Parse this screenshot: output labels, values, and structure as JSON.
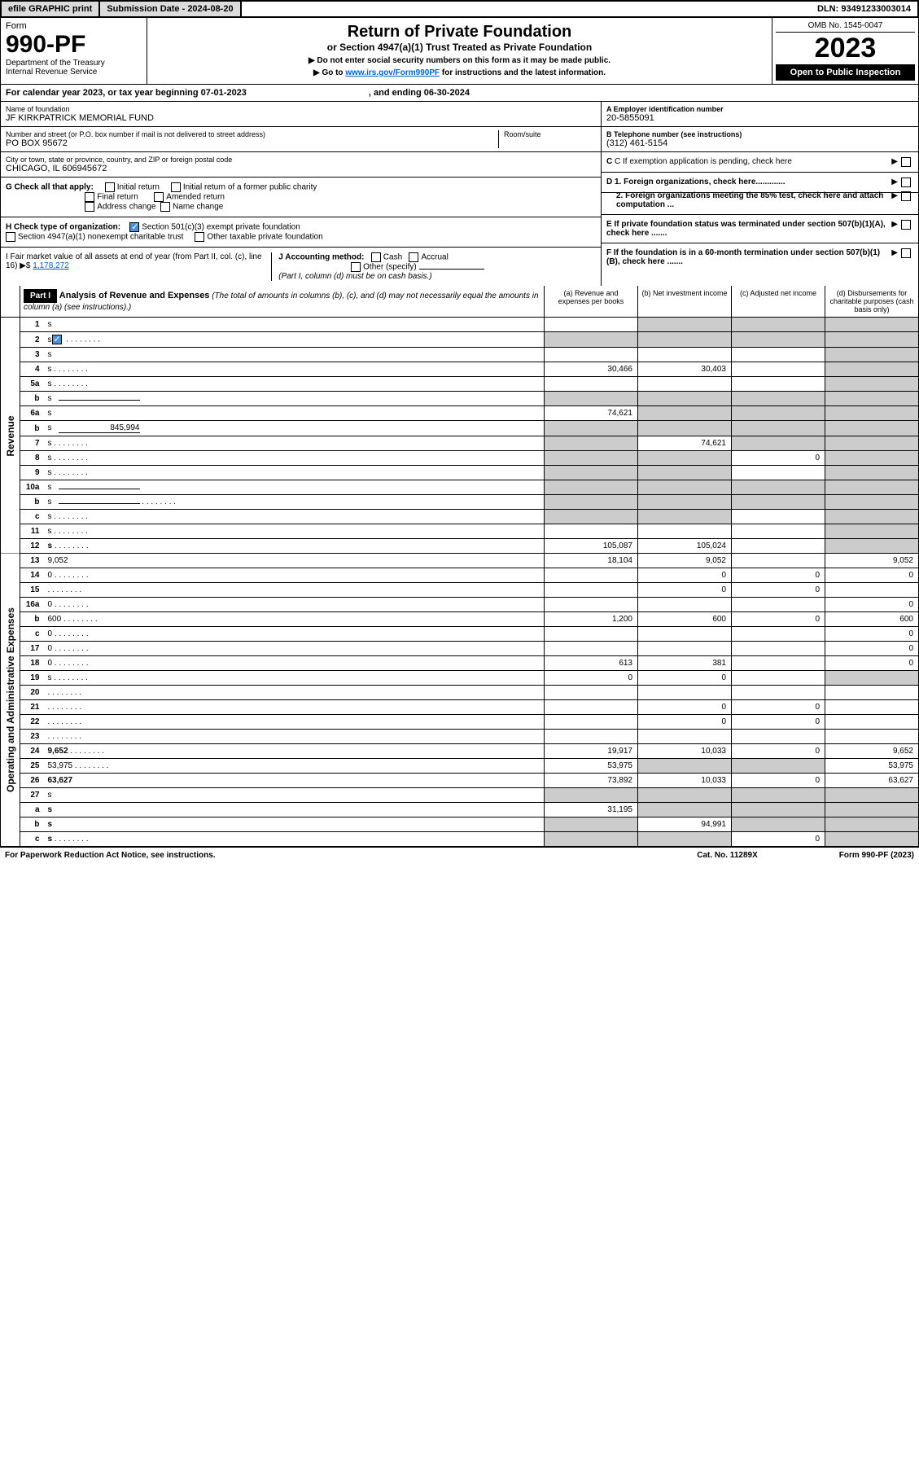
{
  "topbar": {
    "efile": "efile GRAPHIC print",
    "submission": "Submission Date - 2024-08-20",
    "dln": "DLN: 93491233003014"
  },
  "header": {
    "form_label": "Form",
    "form_number": "990-PF",
    "dept1": "Department of the Treasury",
    "dept2": "Internal Revenue Service",
    "title": "Return of Private Foundation",
    "subtitle": "or Section 4947(a)(1) Trust Treated as Private Foundation",
    "note1": "▶ Do not enter social security numbers on this form as it may be made public.",
    "note2_pre": "▶ Go to ",
    "note2_link": "www.irs.gov/Form990PF",
    "note2_post": " for instructions and the latest information.",
    "omb": "OMB No. 1545-0047",
    "year": "2023",
    "open": "Open to Public Inspection"
  },
  "calendar": {
    "text1": "For calendar year 2023, or tax year beginning 07-01-2023",
    "text2": ", and ending 06-30-2024"
  },
  "entity": {
    "name_lbl": "Name of foundation",
    "name": "JF KIRKPATRICK MEMORIAL FUND",
    "addr_lbl": "Number and street (or P.O. box number if mail is not delivered to street address)",
    "addr": "PO BOX 95672",
    "room_lbl": "Room/suite",
    "city_lbl": "City or town, state or province, country, and ZIP or foreign postal code",
    "city": "CHICAGO, IL  606945672",
    "ein_lbl": "A Employer identification number",
    "ein": "20-5855091",
    "phone_lbl": "B Telephone number (see instructions)",
    "phone": "(312) 461-5154",
    "c_lbl": "C If exemption application is pending, check here",
    "d1_lbl": "D 1. Foreign organizations, check here.............",
    "d2_lbl": "2. Foreign organizations meeting the 85% test, check here and attach computation ...",
    "e_lbl": "E  If private foundation status was terminated under section 507(b)(1)(A), check here .......",
    "f_lbl": "F  If the foundation is in a 60-month termination under section 507(b)(1)(B), check here ......."
  },
  "g_check": {
    "label": "G Check all that apply:",
    "o1": "Initial return",
    "o2": "Initial return of a former public charity",
    "o3": "Final return",
    "o4": "Amended return",
    "o5": "Address change",
    "o6": "Name change"
  },
  "h_check": {
    "label": "H Check type of organization:",
    "o1": "Section 501(c)(3) exempt private foundation",
    "o2": "Section 4947(a)(1) nonexempt charitable trust",
    "o3": "Other taxable private foundation"
  },
  "i_block": {
    "label": "I Fair market value of all assets at end of year (from Part II, col. (c), line 16)",
    "arrow": "▶$",
    "value": "1,178,272"
  },
  "j_block": {
    "label": "J Accounting method:",
    "o1": "Cash",
    "o2": "Accrual",
    "o3": "Other (specify)",
    "note": "(Part I, column (d) must be on cash basis.)"
  },
  "part1": {
    "tag": "Part I",
    "title": "Analysis of Revenue and Expenses",
    "desc": " (The total of amounts in columns (b), (c), and (d) may not necessarily equal the amounts in column (a) (see instructions).)",
    "col_a": "(a)   Revenue and expenses per books",
    "col_b": "(b)   Net investment income",
    "col_c": "(c)   Adjusted net income",
    "col_d": "(d)   Disbursements for charitable purposes (cash basis only)"
  },
  "side_labels": {
    "revenue": "Revenue",
    "expenses": "Operating and Administrative Expenses"
  },
  "rows": [
    {
      "n": "1",
      "d": "s",
      "a": "",
      "b": "s",
      "c": "s"
    },
    {
      "n": "2",
      "d": "s",
      "a": "s",
      "b": "s",
      "c": "s",
      "checked": true,
      "dots": true
    },
    {
      "n": "3",
      "d": "s",
      "a": "",
      "b": "",
      "c": ""
    },
    {
      "n": "4",
      "d": "s",
      "a": "30,466",
      "b": "30,403",
      "c": "",
      "dots": true
    },
    {
      "n": "5a",
      "d": "s",
      "a": "",
      "b": "",
      "c": "",
      "dots": true
    },
    {
      "n": "b",
      "d": "s",
      "a": "s",
      "b": "s",
      "c": "s",
      "inline": true
    },
    {
      "n": "6a",
      "d": "s",
      "a": "74,621",
      "b": "s",
      "c": "s"
    },
    {
      "n": "b",
      "d": "s",
      "a": "s",
      "b": "s",
      "c": "s",
      "inline": true,
      "inline_val": "845,994"
    },
    {
      "n": "7",
      "d": "s",
      "a": "s",
      "b": "74,621",
      "c": "s",
      "dots": true
    },
    {
      "n": "8",
      "d": "s",
      "a": "s",
      "b": "s",
      "c": "0",
      "dots": true
    },
    {
      "n": "9",
      "d": "s",
      "a": "s",
      "b": "s",
      "c": "",
      "dots": true
    },
    {
      "n": "10a",
      "d": "s",
      "a": "s",
      "b": "s",
      "c": "s",
      "inline": true
    },
    {
      "n": "b",
      "d": "s",
      "a": "s",
      "b": "s",
      "c": "s",
      "inline": true,
      "dots": true
    },
    {
      "n": "c",
      "d": "s",
      "a": "s",
      "b": "s",
      "c": "",
      "dots": true
    },
    {
      "n": "11",
      "d": "s",
      "a": "",
      "b": "",
      "c": "",
      "dots": true
    },
    {
      "n": "12",
      "d": "s",
      "a": "105,087",
      "b": "105,024",
      "c": "",
      "bold": true,
      "dots": true
    },
    {
      "n": "13",
      "d": "9,052",
      "a": "18,104",
      "b": "9,052",
      "c": ""
    },
    {
      "n": "14",
      "d": "0",
      "a": "",
      "b": "0",
      "c": "0",
      "dots": true
    },
    {
      "n": "15",
      "d": "",
      "a": "",
      "b": "0",
      "c": "0",
      "dots": true
    },
    {
      "n": "16a",
      "d": "0",
      "a": "",
      "b": "",
      "c": "",
      "dots": true
    },
    {
      "n": "b",
      "d": "600",
      "a": "1,200",
      "b": "600",
      "c": "0",
      "dots": true
    },
    {
      "n": "c",
      "d": "0",
      "a": "",
      "b": "",
      "c": "",
      "dots": true
    },
    {
      "n": "17",
      "d": "0",
      "a": "",
      "b": "",
      "c": "",
      "dots": true
    },
    {
      "n": "18",
      "d": "0",
      "a": "613",
      "b": "381",
      "c": "",
      "dots": true
    },
    {
      "n": "19",
      "d": "s",
      "a": "0",
      "b": "0",
      "c": "",
      "dots": true
    },
    {
      "n": "20",
      "d": "",
      "a": "",
      "b": "",
      "c": "",
      "dots": true
    },
    {
      "n": "21",
      "d": "",
      "a": "",
      "b": "0",
      "c": "0",
      "dots": true
    },
    {
      "n": "22",
      "d": "",
      "a": "",
      "b": "0",
      "c": "0",
      "dots": true
    },
    {
      "n": "23",
      "d": "",
      "a": "",
      "b": "",
      "c": "",
      "dots": true
    },
    {
      "n": "24",
      "d": "9,652",
      "a": "19,917",
      "b": "10,033",
      "c": "0",
      "bold": true,
      "dots": true
    },
    {
      "n": "25",
      "d": "53,975",
      "a": "53,975",
      "b": "s",
      "c": "s",
      "dots": true
    },
    {
      "n": "26",
      "d": "63,627",
      "a": "73,892",
      "b": "10,033",
      "c": "0",
      "bold": true
    },
    {
      "n": "27",
      "d": "s",
      "a": "s",
      "b": "s",
      "c": "s"
    },
    {
      "n": "a",
      "d": "s",
      "a": "31,195",
      "b": "s",
      "c": "s",
      "bold": true
    },
    {
      "n": "b",
      "d": "s",
      "a": "s",
      "b": "94,991",
      "c": "s",
      "bold": true
    },
    {
      "n": "c",
      "d": "s",
      "a": "s",
      "b": "s",
      "c": "0",
      "bold": true,
      "dots": true
    }
  ],
  "footer": {
    "left": "For Paperwork Reduction Act Notice, see instructions.",
    "mid": "Cat. No. 11289X",
    "right": "Form 990-PF (2023)"
  },
  "colors": {
    "shaded": "#cccccc",
    "header_bg": "#000000",
    "button_bg": "#dcdcdc",
    "link": "#0066cc",
    "check": "#4a90d9"
  }
}
